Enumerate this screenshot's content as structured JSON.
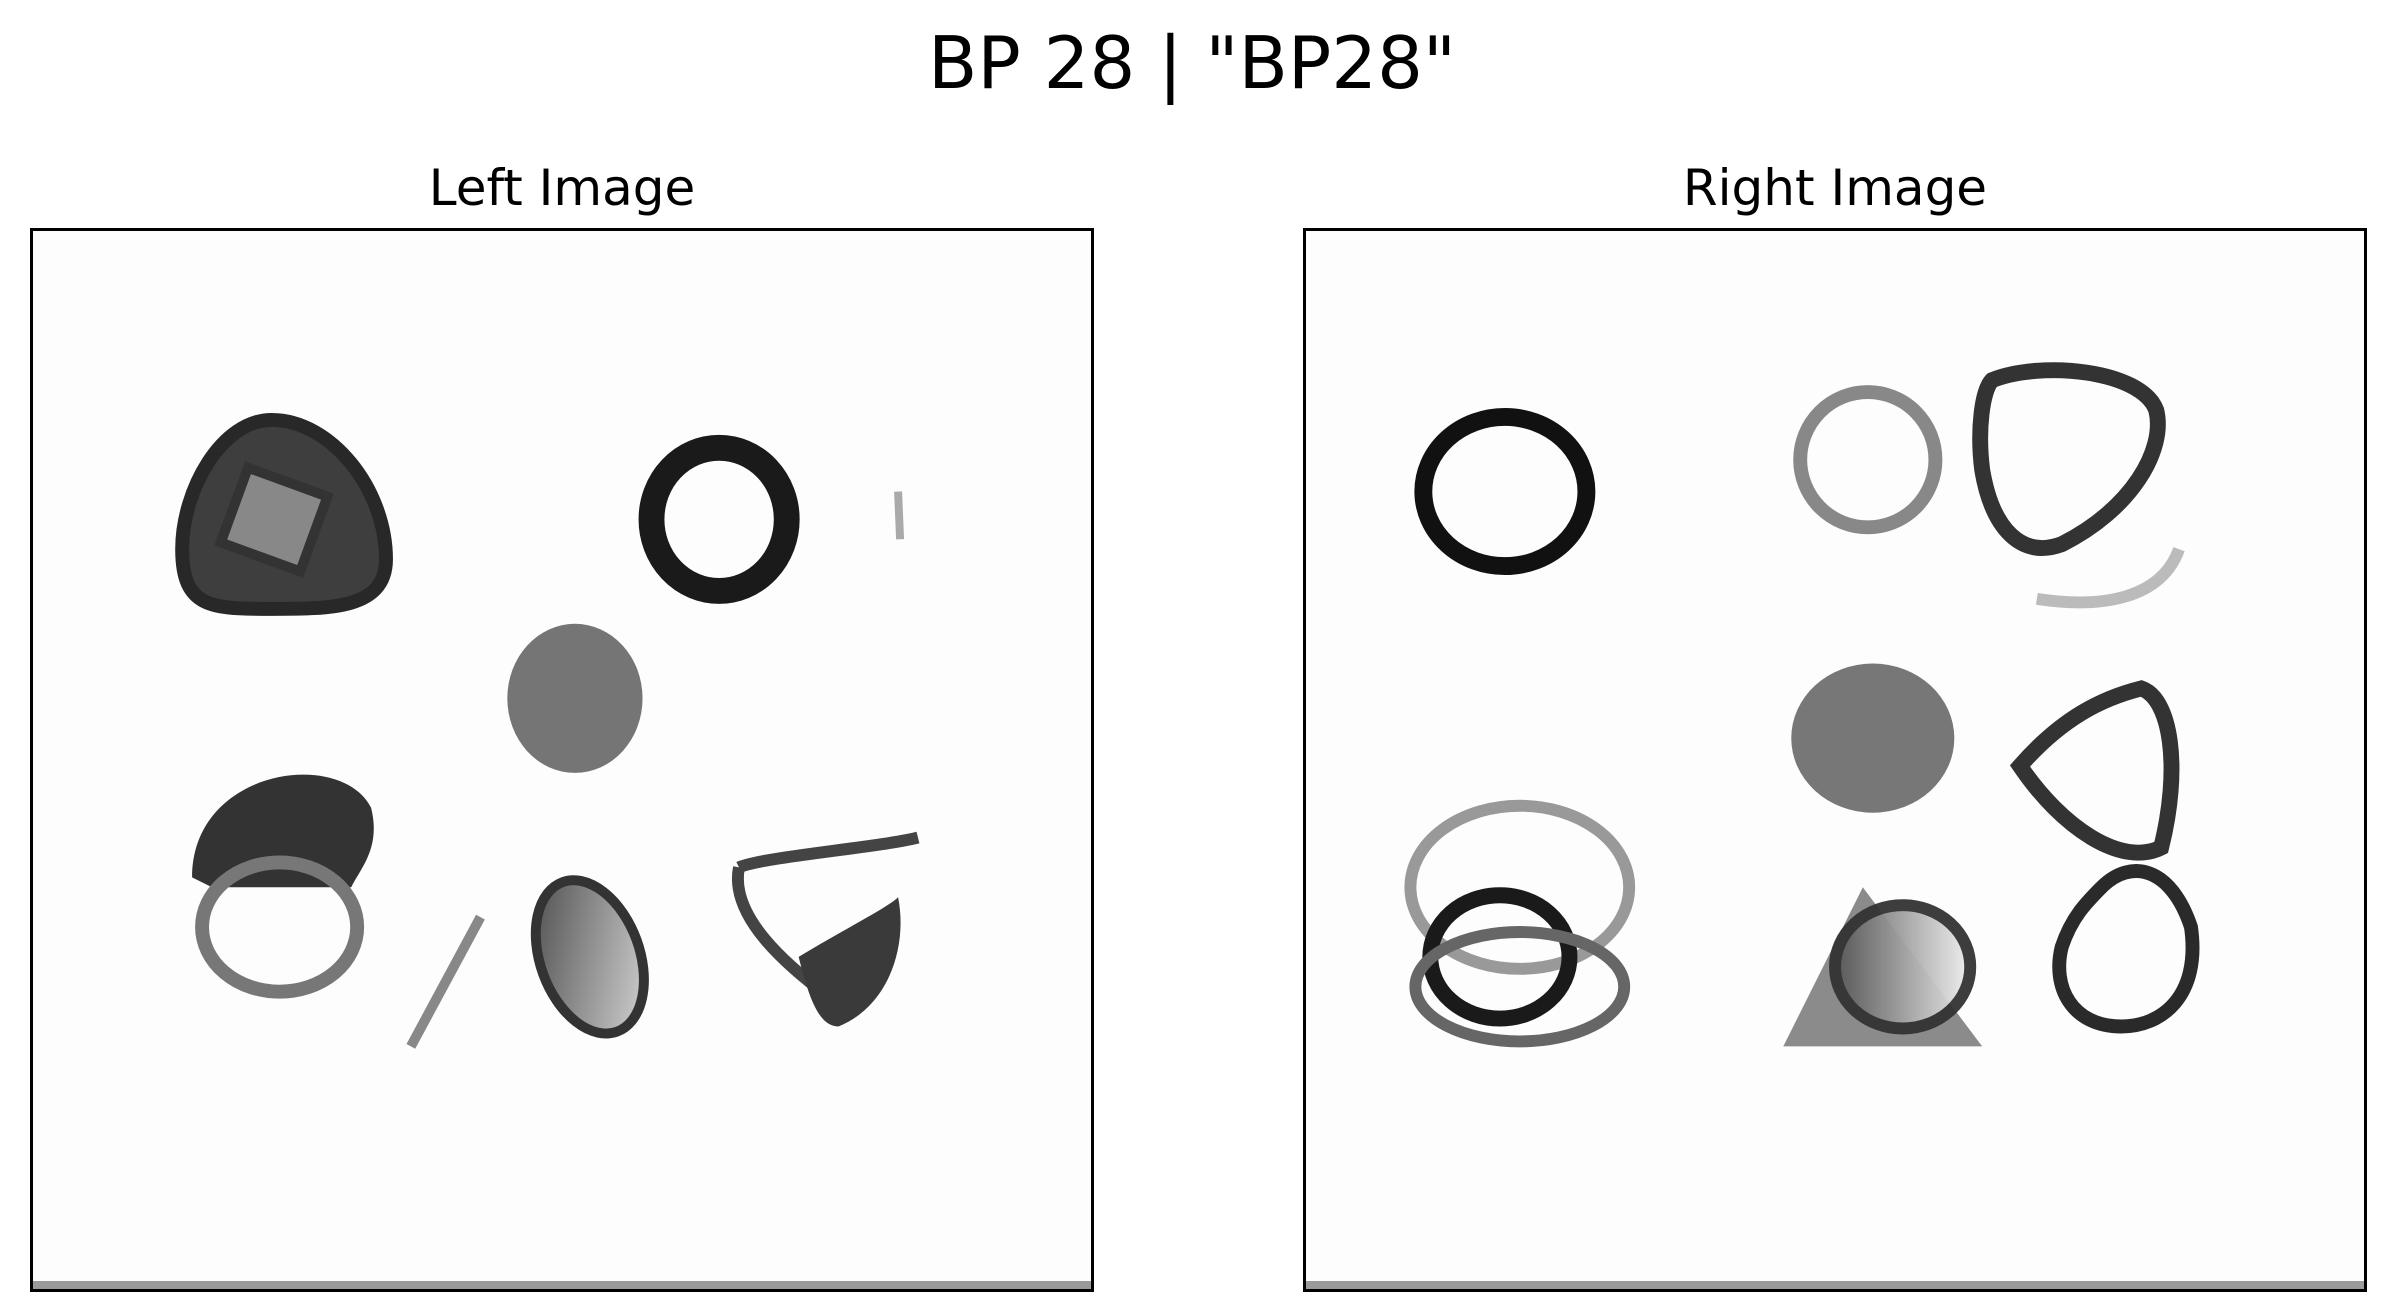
{
  "figure": {
    "title": "BP 28 | \"BP28\""
  },
  "panels": [
    {
      "title": "Left Image"
    },
    {
      "title": "Right Image"
    }
  ]
}
